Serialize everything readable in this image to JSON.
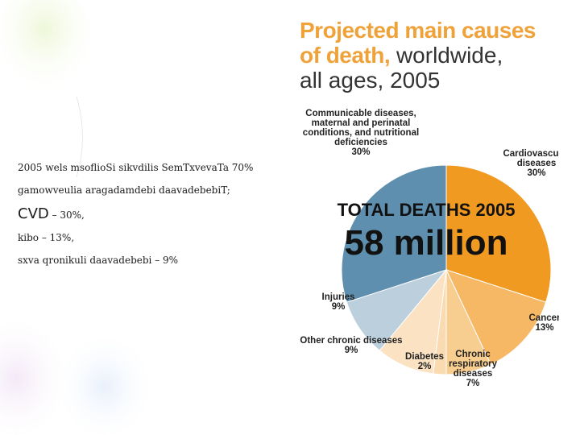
{
  "slide": {
    "line1": "2005 wels msoflioSi sikvdilis SemTxvevaTa 70%",
    "line2": "gamowveulia aragadamdebi daavadebebiT;",
    "line3_lead": "CVD",
    "line3_rest": " – 30%,",
    "line4": "kibo – 13%,",
    "line5": "sxva qronikuli daavadebebi – 9%"
  },
  "colors": {
    "title_orange": "#f0a23a",
    "communicable": "#5f8fae",
    "cardiovascular": "#f19a22",
    "cancer": "#f6b865",
    "chronic_respiratory": "#f8cd90",
    "diabetes": "#fadab0",
    "other_chronic": "#fbe2c3",
    "injuries": "#bccfdd"
  },
  "chart_data": {
    "type": "pie",
    "title_line1": "Projected main causes",
    "title_bold": "of death,",
    "title_thin": " worldwide,",
    "title_line3": "all ages, 2005",
    "center_line1": "TOTAL DEATHS 2005",
    "center_line2": "58 million",
    "slices": [
      {
        "label": "Cardiovascular diseases",
        "label_lines": [
          "Cardiovascular",
          "diseases",
          "30%"
        ],
        "value": 30,
        "color_key": "cardiovascular"
      },
      {
        "label": "Cancer",
        "label_lines": [
          "Cancer",
          "13%"
        ],
        "value": 13,
        "color_key": "cancer"
      },
      {
        "label": "Chronic respiratory diseases",
        "label_lines": [
          "Chronic",
          "respiratory",
          "diseases",
          "7%"
        ],
        "value": 7,
        "color_key": "chronic_respiratory"
      },
      {
        "label": "Diabetes",
        "label_lines": [
          "Diabetes",
          "2%"
        ],
        "value": 2,
        "color_key": "diabetes"
      },
      {
        "label": "Other chronic diseases",
        "label_lines": [
          "Other chronic diseases",
          "9%"
        ],
        "value": 9,
        "color_key": "other_chronic"
      },
      {
        "label": "Injuries",
        "label_lines": [
          "Injuries",
          "9%"
        ],
        "value": 9,
        "color_key": "injuries"
      },
      {
        "label": "Communicable diseases, maternal and perinatal conditions, and nutritional deficiencies",
        "label_lines": [
          "Communicable diseases,",
          "maternal and perinatal",
          "conditions, and nutritional",
          "deficiencies",
          "30%"
        ],
        "value": 30,
        "color_key": "communicable"
      }
    ]
  }
}
